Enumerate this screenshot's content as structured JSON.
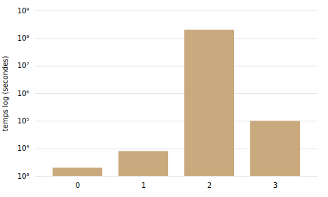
{
  "chart_data": {
    "type": "bar",
    "categories": [
      "0",
      "1",
      "2",
      "3"
    ],
    "values": [
      2000,
      8000,
      200000000,
      100000
    ],
    "color": "#c9a97e",
    "ylabel": "temps log (secondes)",
    "log": "y",
    "ylim": [
      1000,
      1000000000
    ],
    "yticks": [
      {
        "value": 1000,
        "label": "10³"
      },
      {
        "value": 10000,
        "label": "10⁴"
      },
      {
        "value": 100000,
        "label": "10⁵"
      },
      {
        "value": 1000000,
        "label": "10⁶"
      },
      {
        "value": 10000000,
        "label": "10⁷"
      },
      {
        "value": 100000000,
        "label": "10⁸"
      },
      {
        "value": 1000000000,
        "label": "10⁹"
      }
    ],
    "grid": true
  }
}
